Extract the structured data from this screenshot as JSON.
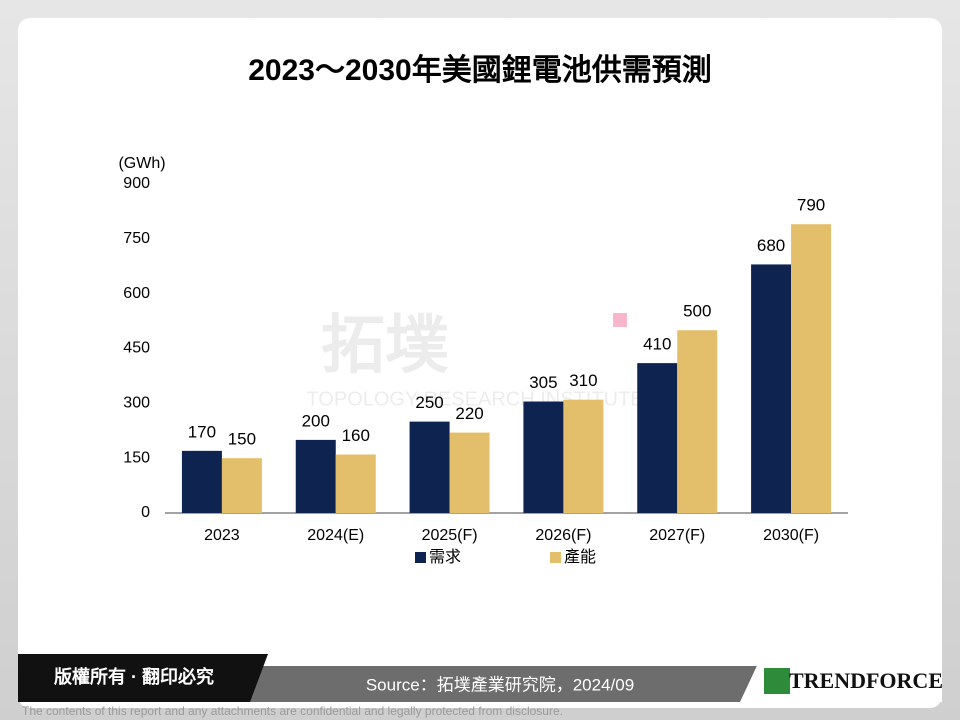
{
  "chart_data": {
    "type": "bar",
    "title": "2023～2030年美國鋰電池供需預測",
    "y_label": "(GWh)",
    "categories": [
      "2023",
      "2024(E)",
      "2025(F)",
      "2026(F)",
      "2027(F)",
      "2030(F)"
    ],
    "series": [
      {
        "name": "需求",
        "color": "#0f2350",
        "values": [
          170,
          200,
          250,
          305,
          410,
          680
        ]
      },
      {
        "name": "產能",
        "color": "#e4bf6b",
        "values": [
          150,
          160,
          220,
          310,
          500,
          790
        ]
      }
    ],
    "ylim": [
      0,
      900
    ],
    "yticks": [
      0,
      150,
      300,
      450,
      600,
      750,
      900
    ],
    "grid": false,
    "legend": "bottom"
  },
  "watermark": {
    "name": "拓墣",
    "subtitle": "TOPOLOGY RESEARCH INSTITUTE"
  },
  "footer": {
    "copyright": "版權所有 · 翻印必究",
    "source": "Source：拓墣產業研究院，2024/09",
    "logo": "TRENDFORCE",
    "disclaimer": "The contents of this report and any attachments are confidential and legally protected from disclosure."
  }
}
